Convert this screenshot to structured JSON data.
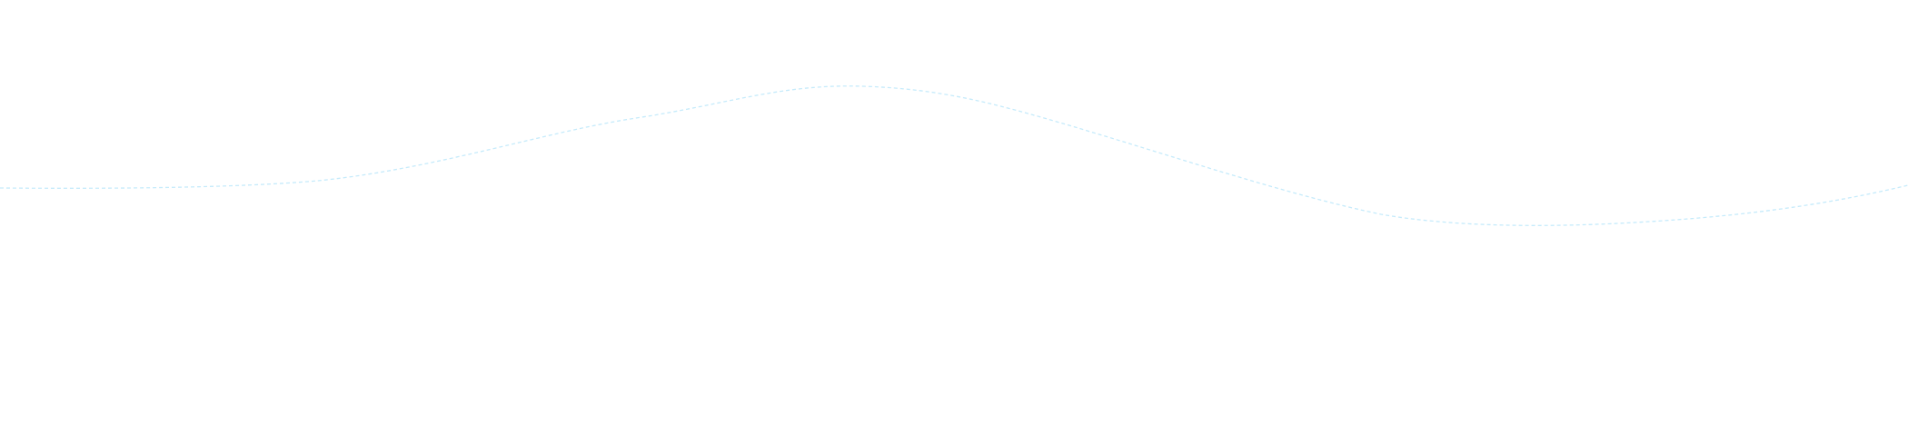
{
  "wave": {
    "stroke_color": "#c6ebfb",
    "style": "dashed"
  }
}
